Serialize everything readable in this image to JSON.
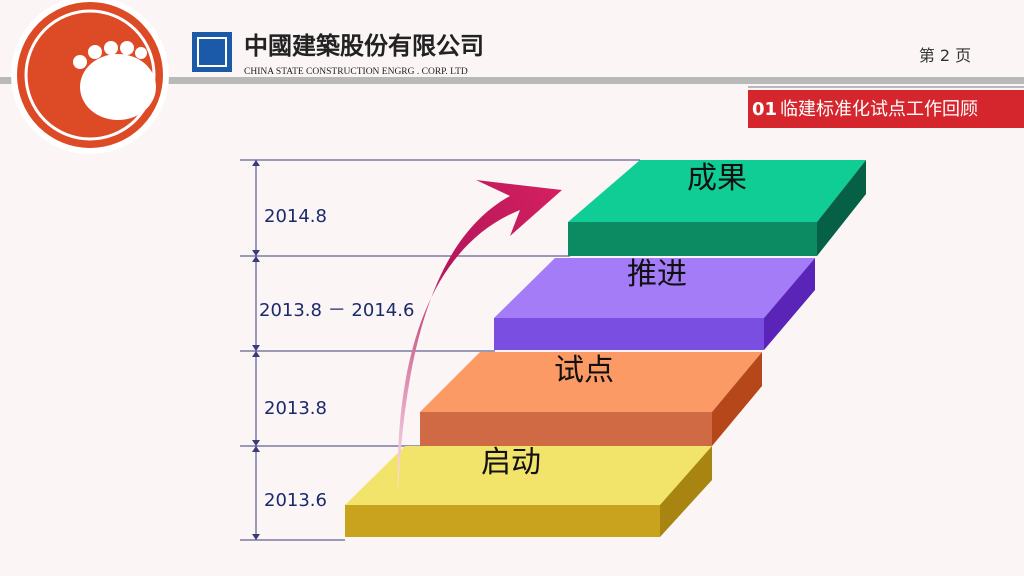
{
  "header": {
    "company_cn": "中國建築股份有限公司",
    "company_en": "CHINA STATE CONSTRUCTION ENGRG . CORP. LTD",
    "page": "第 2 页"
  },
  "section": {
    "number": "01",
    "title": "临建标准化试点工作回顾"
  },
  "timeline": {
    "periods": [
      "2014.8",
      "2013.8 － 2014.6",
      "2013.8",
      "2013.6"
    ]
  },
  "steps": {
    "labels": [
      "成果",
      "推进",
      "试点",
      "启动"
    ]
  }
}
